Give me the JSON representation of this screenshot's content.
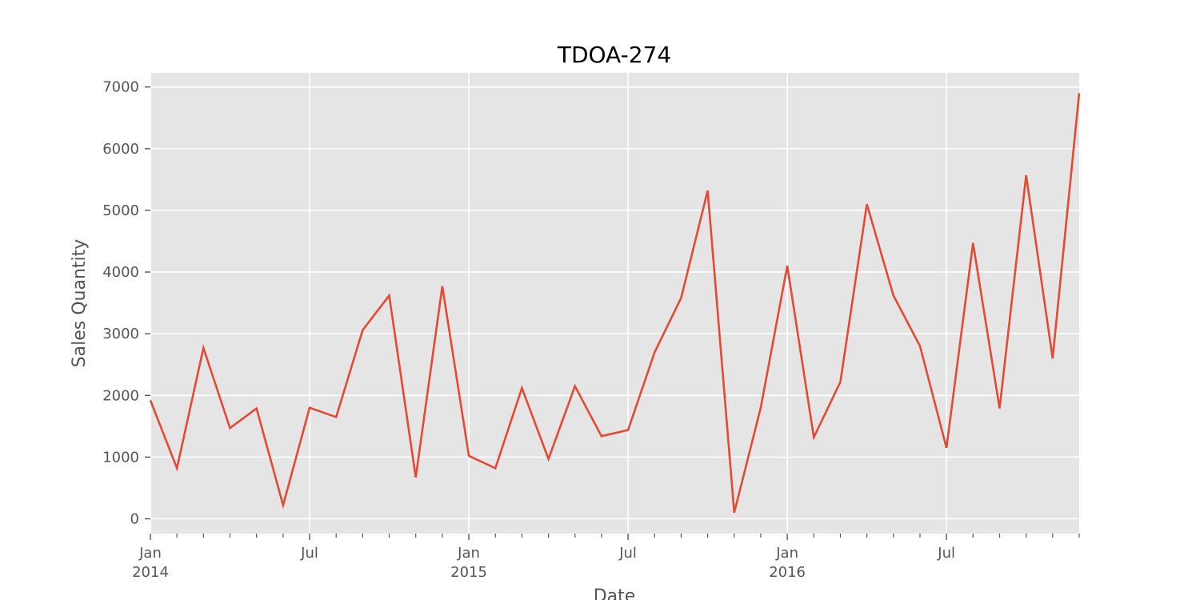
{
  "chart_data": {
    "type": "line",
    "title": "TDOA-274",
    "xlabel": "Date",
    "ylabel": "Sales Quantity",
    "x": [
      "2014-01",
      "2014-02",
      "2014-03",
      "2014-04",
      "2014-05",
      "2014-06",
      "2014-07",
      "2014-08",
      "2014-09",
      "2014-10",
      "2014-11",
      "2014-12",
      "2015-01",
      "2015-02",
      "2015-03",
      "2015-04",
      "2015-05",
      "2015-06",
      "2015-07",
      "2015-08",
      "2015-09",
      "2015-10",
      "2015-11",
      "2015-12",
      "2016-01",
      "2016-02",
      "2016-03",
      "2016-04",
      "2016-05",
      "2016-06",
      "2016-07",
      "2016-08",
      "2016-09",
      "2016-10",
      "2016-11",
      "2016-12"
    ],
    "series": [
      {
        "values": [
          1920,
          820,
          2770,
          1470,
          1790,
          220,
          1800,
          1650,
          3060,
          3620,
          670,
          3770,
          1020,
          820,
          2120,
          970,
          2150,
          1340,
          1440,
          2700,
          3580,
          5320,
          100,
          1800,
          4100,
          1320,
          2220,
          5100,
          3620,
          2800,
          1150,
          4470,
          1790,
          5570,
          2600,
          6900
        ],
        "color": "#e24a33"
      }
    ],
    "ylim": [
      -240,
      7230
    ],
    "yticks": [
      0,
      1000,
      2000,
      3000,
      4000,
      5000,
      6000,
      7000
    ],
    "xticks": [
      {
        "date": "2014-01",
        "label": "Jan",
        "year": "2014"
      },
      {
        "date": "2014-07",
        "label": "Jul",
        "year": ""
      },
      {
        "date": "2015-01",
        "label": "Jan",
        "year": "2015"
      },
      {
        "date": "2015-07",
        "label": "Jul",
        "year": ""
      },
      {
        "date": "2016-01",
        "label": "Jan",
        "year": "2016"
      },
      {
        "date": "2016-07",
        "label": "Jul",
        "year": ""
      }
    ],
    "grid": true,
    "style": {
      "background": "#e5e5e5",
      "grid_color": "#ffffff",
      "tick_color": "#555555"
    }
  }
}
